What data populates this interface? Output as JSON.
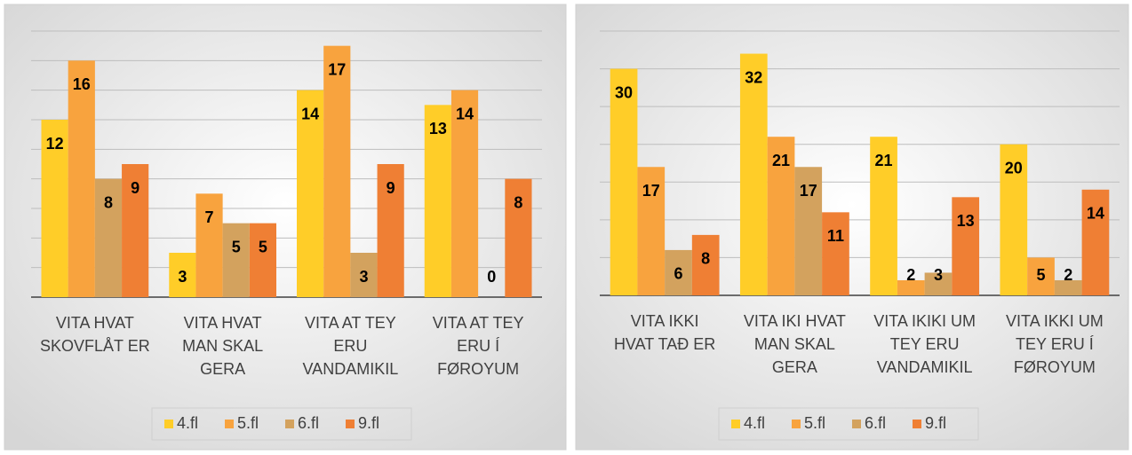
{
  "chart_data": [
    {
      "type": "bar",
      "categories": [
        [
          "VITA HVAT",
          "SKOVFLÅT ER"
        ],
        [
          "VITA HVAT",
          "MAN SKAL",
          "GERA"
        ],
        [
          "VITA AT TEY",
          "ERU",
          "VANDAMIKIL"
        ],
        [
          "VITA AT TEY",
          "ERU Í",
          "FØROYUM"
        ]
      ],
      "series": [
        {
          "name": "4.fl",
          "color": "#ffcd28",
          "values": [
            12,
            3,
            14,
            13
          ]
        },
        {
          "name": "5.fl",
          "color": "#f8a33e",
          "values": [
            16,
            7,
            17,
            14
          ]
        },
        {
          "name": "6.fl",
          "color": "#d3a25e",
          "values": [
            8,
            5,
            3,
            0
          ]
        },
        {
          "name": "9.fl",
          "color": "#ef7f34",
          "values": [
            9,
            5,
            9,
            8
          ]
        }
      ],
      "ylim": [
        0,
        18
      ],
      "yticks": [
        0,
        2,
        4,
        6,
        8,
        10,
        12,
        14,
        16,
        18
      ],
      "grid": true,
      "legend": "bottom"
    },
    {
      "type": "bar",
      "categories": [
        [
          "VITA IKKI",
          "HVAT TAÐ ER"
        ],
        [
          "VITA IKI HVAT",
          "MAN SKAL",
          "GERA"
        ],
        [
          "VITA IKIKI UM",
          "TEY ERU",
          "VANDAMIKIL"
        ],
        [
          "VITA IKKI UM",
          "TEY ERU Í",
          "FØROYUM"
        ]
      ],
      "series": [
        {
          "name": "4.fl",
          "color": "#ffcd28",
          "values": [
            30,
            32,
            21,
            20
          ]
        },
        {
          "name": "5.fl",
          "color": "#f8a33e",
          "values": [
            17,
            21,
            2,
            5
          ]
        },
        {
          "name": "6.fl",
          "color": "#d3a25e",
          "values": [
            6,
            17,
            3,
            2
          ]
        },
        {
          "name": "9.fl",
          "color": "#ef7f34",
          "values": [
            8,
            11,
            13,
            14
          ]
        }
      ],
      "ylim": [
        0,
        35
      ],
      "yticks": [
        0,
        5,
        10,
        15,
        20,
        25,
        30,
        35
      ],
      "grid": true,
      "legend": "bottom"
    }
  ]
}
